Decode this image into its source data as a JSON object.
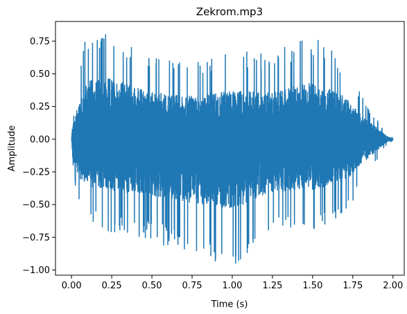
{
  "chart_data": {
    "type": "line",
    "title": "Zekrom.mp3",
    "xlabel": "Time (s)",
    "ylabel": "Amplitude",
    "xlim": [
      -0.1,
      2.07
    ],
    "ylim": [
      -1.04,
      0.9
    ],
    "x_ticks": [
      0.0,
      0.25,
      0.5,
      0.75,
      1.0,
      1.25,
      1.5,
      1.75,
      2.0
    ],
    "x_tick_labels": [
      "0.00",
      "0.25",
      "0.50",
      "0.75",
      "1.00",
      "1.25",
      "1.50",
      "1.75",
      "2.00"
    ],
    "y_ticks": [
      -1.0,
      -0.75,
      -0.5,
      -0.25,
      0.0,
      0.25,
      0.5,
      0.75
    ],
    "y_tick_labels": [
      "−1.00",
      "−0.75",
      "−0.50",
      "−0.25",
      "0.00",
      "0.25",
      "0.50",
      "0.75"
    ],
    "grid": false,
    "series": [
      {
        "color": "#1f77b4",
        "envelope": {
          "t": [
            0.0,
            0.01,
            0.02,
            0.05,
            0.1,
            0.25,
            0.5,
            0.75,
            1.0,
            1.25,
            1.5,
            1.7,
            1.8,
            1.88,
            1.93,
            1.97,
            2.0
          ],
          "upper": [
            0.0,
            0.34,
            0.3,
            0.6,
            0.82,
            0.85,
            0.65,
            0.6,
            0.68,
            0.66,
            0.8,
            0.6,
            0.35,
            0.2,
            0.1,
            0.03,
            0.01
          ],
          "lower": [
            0.0,
            -0.38,
            -0.35,
            -0.55,
            -0.65,
            -0.72,
            -0.78,
            -0.89,
            -0.97,
            -0.73,
            -0.7,
            -0.6,
            -0.35,
            -0.2,
            -0.1,
            -0.03,
            -0.01
          ]
        }
      }
    ]
  }
}
